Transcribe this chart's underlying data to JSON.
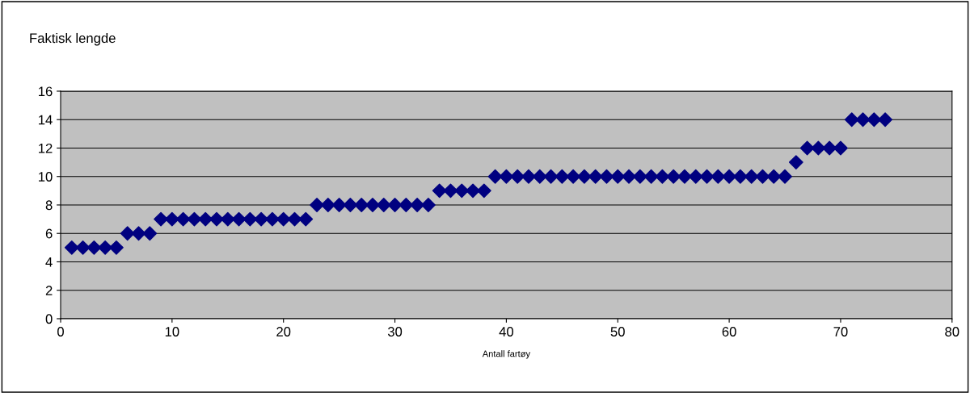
{
  "chart_data": {
    "type": "scatter",
    "ylabel": "Faktisk lengde",
    "xlabel": "Antall fartøy",
    "x": [
      1,
      2,
      3,
      4,
      5,
      6,
      7,
      8,
      9,
      10,
      11,
      12,
      13,
      14,
      15,
      16,
      17,
      18,
      19,
      20,
      21,
      22,
      23,
      24,
      25,
      26,
      27,
      28,
      29,
      30,
      31,
      32,
      33,
      34,
      35,
      36,
      37,
      38,
      39,
      40,
      41,
      42,
      43,
      44,
      45,
      46,
      47,
      48,
      49,
      50,
      51,
      52,
      53,
      54,
      55,
      56,
      57,
      58,
      59,
      60,
      61,
      62,
      63,
      64,
      65,
      66,
      67,
      68,
      69,
      70,
      71,
      72,
      73,
      74
    ],
    "series": [
      {
        "color": "#000080",
        "values": [
          5,
          5,
          5,
          5,
          5,
          6,
          6,
          6,
          7,
          7,
          7,
          7,
          7,
          7,
          7,
          7,
          7,
          7,
          7,
          7,
          7,
          7,
          8,
          8,
          8,
          8,
          8,
          8,
          8,
          8,
          8,
          8,
          8,
          9,
          9,
          9,
          9,
          9,
          10,
          10,
          10,
          10,
          10,
          10,
          10,
          10,
          10,
          10,
          10,
          10,
          10,
          10,
          10,
          10,
          10,
          10,
          10,
          10,
          10,
          10,
          10,
          10,
          10,
          10,
          10,
          11,
          12,
          12,
          12,
          12,
          14,
          14,
          14,
          14
        ]
      }
    ],
    "xlim": [
      0,
      80
    ],
    "xticks": [
      0,
      10,
      20,
      30,
      40,
      50,
      60,
      70,
      80
    ],
    "ylim": [
      0,
      16
    ],
    "yticks": [
      0,
      2,
      4,
      6,
      8,
      10,
      12,
      14,
      16
    ],
    "grid": "y",
    "marker": "diamond",
    "legend": false
  }
}
